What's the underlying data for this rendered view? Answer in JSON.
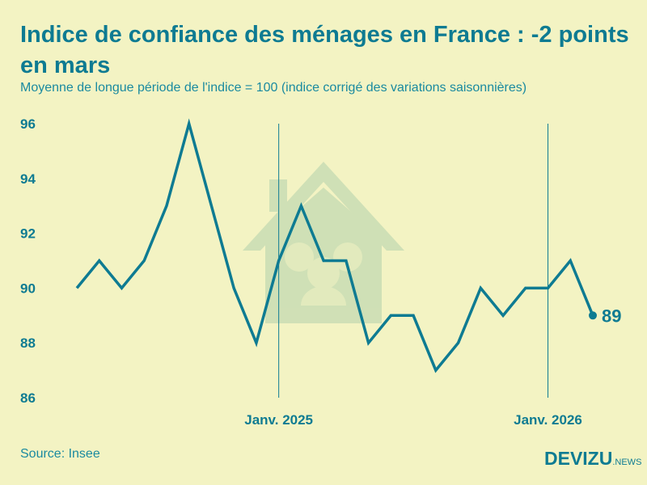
{
  "chart_data": {
    "type": "line",
    "title": "Indice de confiance des ménages en France : -2 points en mars",
    "subtitle": "Moyenne de longue période de l'indice = 100 (indice corrigé des variations saisonnières)",
    "x": [
      "2024-04",
      "2024-05",
      "2024-06",
      "2024-07",
      "2024-08",
      "2024-09",
      "2024-10",
      "2024-11",
      "2024-12",
      "2025-01",
      "2025-02",
      "2025-03",
      "2025-04",
      "2025-05",
      "2025-06",
      "2025-07",
      "2025-08",
      "2025-09",
      "2025-10",
      "2025-11",
      "2025-12",
      "2026-01",
      "2026-02",
      "2026-03"
    ],
    "values": [
      90,
      91,
      90,
      91,
      93,
      96,
      93,
      90,
      88,
      91,
      93,
      91,
      91,
      88,
      89,
      89,
      87,
      88,
      90,
      89,
      90,
      90,
      91,
      89
    ],
    "ylim": [
      86,
      96
    ],
    "yticks": [
      "86",
      "88",
      "90",
      "92",
      "94",
      "96"
    ],
    "xticks": [
      {
        "index": 9,
        "label": "Janv. 2025"
      },
      {
        "index": 21,
        "label": "Janv. 2026"
      }
    ],
    "end_label": "89",
    "grid": false,
    "line_color": "#0e7b92",
    "background": "#f3f3c3"
  },
  "source": "Source: Insee",
  "logo": {
    "brand": "DEVIZU",
    "suffix": ".NEWS"
  }
}
